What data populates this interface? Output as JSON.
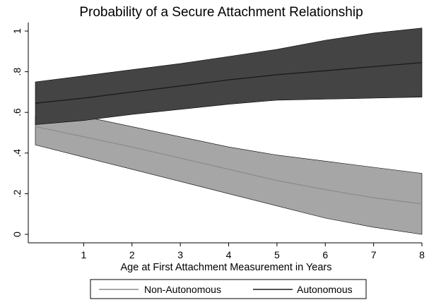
{
  "chart_data": {
    "type": "area",
    "title": "Probability of a Secure Attachment Relationship",
    "xlabel": "Age at First Attachment Measurement in Years",
    "ylabel": "",
    "xlim": [
      0.0,
      8.0
    ],
    "ylim": [
      0,
      1.0
    ],
    "x_ticks": [
      1,
      2,
      3,
      4,
      5,
      6,
      7,
      8
    ],
    "y_ticks": [
      {
        "value": 0,
        "label": "0"
      },
      {
        "value": 0.2,
        "label": ".2"
      },
      {
        "value": 0.4,
        "label": ".4"
      },
      {
        "value": 0.6,
        "label": ".6"
      },
      {
        "value": 0.8,
        "label": ".8"
      },
      {
        "value": 1.0,
        "label": "1"
      }
    ],
    "x": [
      0.0,
      1,
      2,
      3,
      4,
      5,
      6,
      7,
      8
    ],
    "series": [
      {
        "name": "Non-Autonomous",
        "band_color": "#a6a6a6",
        "line_color": "#8c8c8c",
        "estimate": [
          0.53,
          0.48,
          0.43,
          0.375,
          0.32,
          0.265,
          0.22,
          0.18,
          0.15
        ],
        "lower": [
          0.44,
          0.38,
          0.32,
          0.26,
          0.2,
          0.14,
          0.08,
          0.035,
          0.0
        ],
        "upper": [
          0.58,
          0.58,
          0.53,
          0.48,
          0.43,
          0.39,
          0.36,
          0.33,
          0.3
        ]
      },
      {
        "name": "Autonomous",
        "band_color": "#444444",
        "line_color": "#1a1a1a",
        "estimate": [
          0.645,
          0.67,
          0.7,
          0.73,
          0.76,
          0.785,
          0.805,
          0.825,
          0.845
        ],
        "lower": [
          0.54,
          0.56,
          0.59,
          0.615,
          0.64,
          0.66,
          0.665,
          0.67,
          0.675
        ],
        "upper": [
          0.75,
          0.78,
          0.81,
          0.84,
          0.875,
          0.91,
          0.955,
          0.99,
          1.015
        ]
      }
    ],
    "legend_placement": "bottom",
    "grid": false
  }
}
